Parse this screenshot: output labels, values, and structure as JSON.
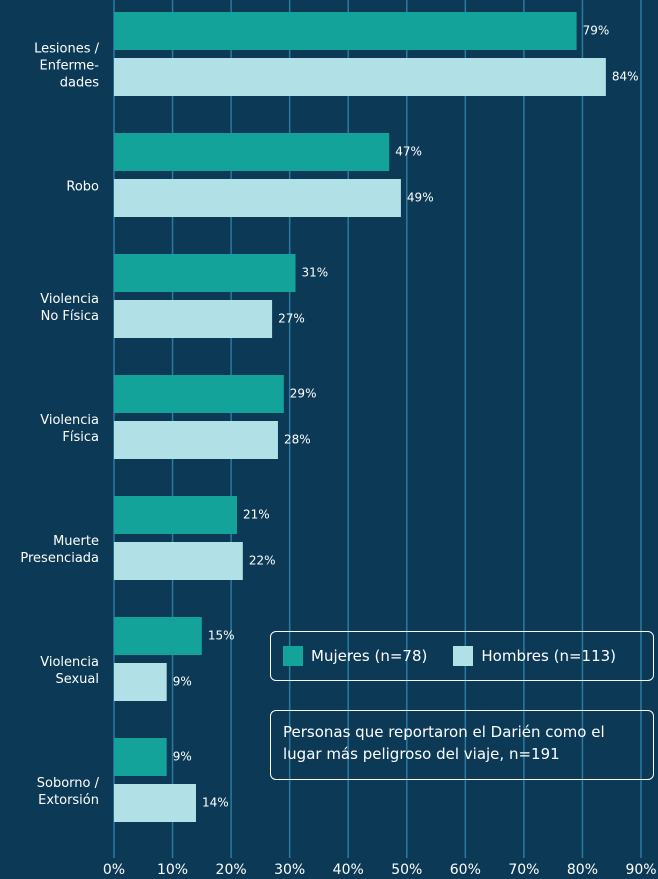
{
  "chart_data": {
    "type": "bar",
    "orientation": "horizontal",
    "categories": [
      "Lesiones /\nEnferme-\ndades",
      "Robo",
      "Violencia\nNo Física",
      "Violencia\nFísica",
      "Muerte\nPresenciada",
      "Violencia\nSexual",
      "Soborno /\nExtorsión"
    ],
    "series": [
      {
        "name": "Mujeres (n=78)",
        "color": "#13a39b",
        "values": [
          79,
          47,
          31,
          29,
          21,
          15,
          9
        ],
        "value_labels": [
          "79%",
          "47%",
          "31%",
          "29%",
          "21%",
          "15%",
          "9%"
        ]
      },
      {
        "name": "Hombres (n=113)",
        "color": "#b1e1e6",
        "values": [
          84,
          49,
          27,
          28,
          22,
          9,
          14
        ],
        "value_labels": [
          "84%",
          "49%",
          "27%",
          "28%",
          "22%",
          "9%",
          "14%"
        ]
      }
    ],
    "xlim": [
      0,
      90
    ],
    "xticks": [
      {
        "value": 0,
        "label": "0%"
      },
      {
        "value": 10,
        "label": "10%"
      },
      {
        "value": 20,
        "label": "20%"
      },
      {
        "value": 30,
        "label": "30%"
      },
      {
        "value": 40,
        "label": "40%"
      },
      {
        "value": 50,
        "label": "50%"
      },
      {
        "value": 60,
        "label": "60%"
      },
      {
        "value": 70,
        "label": "70%"
      },
      {
        "value": 80,
        "label": "80%"
      },
      {
        "value": 90,
        "label": "90%"
      }
    ],
    "grid": true,
    "note": "Personas que reportaron el Darién como el lugar más peligroso del viaje, n=191"
  }
}
